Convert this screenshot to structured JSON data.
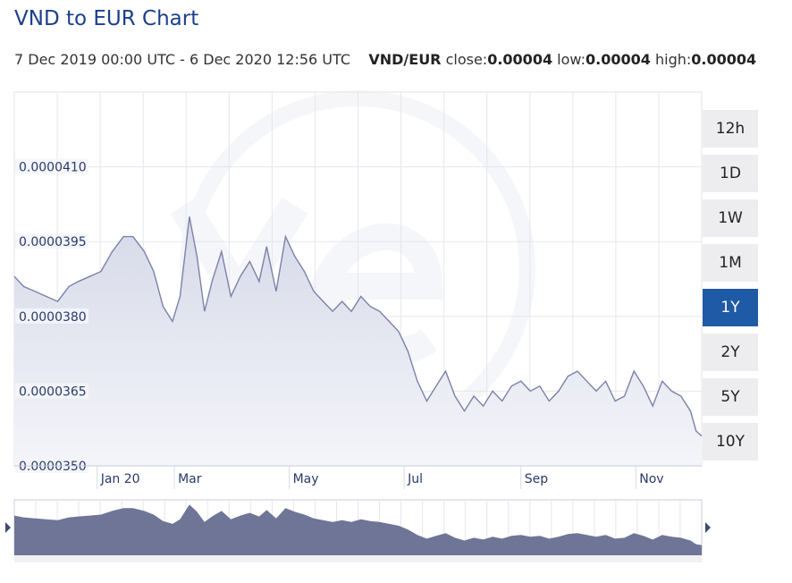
{
  "title": "VND to EUR Chart",
  "subtitle": {
    "range": "7 Dec 2019 00:00 UTC - 6 Dec 2020 12:56 UTC",
    "pair": "VND/EUR",
    "close_label": "close:",
    "close_value": "0.00004",
    "low_label": "low:",
    "low_value": "0.00004",
    "high_label": "high:",
    "high_value": "0.00004"
  },
  "range_buttons": [
    {
      "label": "12h",
      "active": false
    },
    {
      "label": "1D",
      "active": false
    },
    {
      "label": "1W",
      "active": false
    },
    {
      "label": "1M",
      "active": false
    },
    {
      "label": "1Y",
      "active": true
    },
    {
      "label": "2Y",
      "active": false
    },
    {
      "label": "5Y",
      "active": false
    },
    {
      "label": "10Y",
      "active": false
    }
  ],
  "colors": {
    "title": "#1b3f8b",
    "line": "#7a82a8",
    "area_top": "#d6d9e8",
    "area_bottom": "#f4f5fa",
    "navigator_fill": "#6e7597",
    "active_button": "#1f5aa6"
  },
  "chart_data": {
    "type": "area",
    "title": "",
    "xlabel": "",
    "ylabel": "",
    "y_tick_labels": [
      "0.0000350",
      "0.0000365",
      "0.0000380",
      "0.0000395",
      "0.0000410"
    ],
    "y_ticks": [
      3.5e-05,
      3.65e-05,
      3.8e-05,
      3.95e-05,
      4.1e-05
    ],
    "ylim": [
      3.5e-05,
      4.25e-05
    ],
    "x_tick_labels": [
      "Jan 20",
      "Mar",
      "May",
      "Jul",
      "Sep",
      "Nov"
    ],
    "x_ticks": [
      "2020-01-20",
      "2020-03-01",
      "2020-05-01",
      "2020-07-01",
      "2020-09-01",
      "2020-11-01"
    ],
    "x_range": [
      "2019-12-07",
      "2020-12-06"
    ],
    "grid": true,
    "series": [
      {
        "x": [
          "2019-12-07",
          "2019-12-12",
          "2019-12-18",
          "2019-12-24",
          "2019-12-30",
          "2020-01-05",
          "2020-01-10",
          "2020-01-16",
          "2020-01-22",
          "2020-01-28",
          "2020-02-03",
          "2020-02-08",
          "2020-02-14",
          "2020-02-19",
          "2020-02-24",
          "2020-02-29",
          "2020-03-04",
          "2020-03-09",
          "2020-03-13",
          "2020-03-17",
          "2020-03-21",
          "2020-03-26",
          "2020-03-31",
          "2020-04-05",
          "2020-04-10",
          "2020-04-15",
          "2020-04-19",
          "2020-04-24",
          "2020-04-29",
          "2020-05-04",
          "2020-05-09",
          "2020-05-14",
          "2020-05-19",
          "2020-05-24",
          "2020-05-29",
          "2020-06-03",
          "2020-06-08",
          "2020-06-13",
          "2020-06-18",
          "2020-06-23",
          "2020-06-28",
          "2020-07-03",
          "2020-07-08",
          "2020-07-13",
          "2020-07-18",
          "2020-07-23",
          "2020-07-28",
          "2020-08-02",
          "2020-08-07",
          "2020-08-12",
          "2020-08-17",
          "2020-08-22",
          "2020-08-27",
          "2020-09-01",
          "2020-09-06",
          "2020-09-11",
          "2020-09-16",
          "2020-09-21",
          "2020-09-26",
          "2020-10-01",
          "2020-10-06",
          "2020-10-11",
          "2020-10-16",
          "2020-10-21",
          "2020-10-26",
          "2020-10-31",
          "2020-11-05",
          "2020-11-10",
          "2020-11-15",
          "2020-11-20",
          "2020-11-25",
          "2020-11-30",
          "2020-12-03",
          "2020-12-06"
        ],
        "values": [
          3.88e-05,
          3.86e-05,
          3.85e-05,
          3.84e-05,
          3.83e-05,
          3.86e-05,
          3.87e-05,
          3.88e-05,
          3.89e-05,
          3.93e-05,
          3.96e-05,
          3.96e-05,
          3.93e-05,
          3.89e-05,
          3.82e-05,
          3.79e-05,
          3.84e-05,
          4e-05,
          3.92e-05,
          3.81e-05,
          3.87e-05,
          3.93e-05,
          3.84e-05,
          3.88e-05,
          3.91e-05,
          3.87e-05,
          3.94e-05,
          3.85e-05,
          3.96e-05,
          3.92e-05,
          3.89e-05,
          3.85e-05,
          3.83e-05,
          3.81e-05,
          3.83e-05,
          3.81e-05,
          3.84e-05,
          3.82e-05,
          3.81e-05,
          3.79e-05,
          3.77e-05,
          3.73e-05,
          3.67e-05,
          3.63e-05,
          3.66e-05,
          3.69e-05,
          3.64e-05,
          3.61e-05,
          3.64e-05,
          3.62e-05,
          3.65e-05,
          3.63e-05,
          3.66e-05,
          3.67e-05,
          3.65e-05,
          3.66e-05,
          3.63e-05,
          3.65e-05,
          3.68e-05,
          3.69e-05,
          3.67e-05,
          3.65e-05,
          3.67e-05,
          3.63e-05,
          3.64e-05,
          3.69e-05,
          3.66e-05,
          3.62e-05,
          3.67e-05,
          3.65e-05,
          3.64e-05,
          3.61e-05,
          3.57e-05,
          3.56e-05
        ]
      }
    ]
  }
}
